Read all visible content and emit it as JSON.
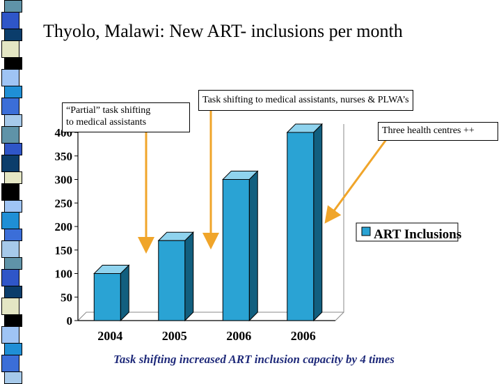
{
  "slide": {
    "title": "Thyolo, Malawi: New ART- inclusions per month",
    "footer": "Task shifting increased ART inclusion capacity by 4 times",
    "callouts": [
      {
        "line1": "“Partial” task shifting",
        "line2": "to medical assistants"
      },
      {
        "line1": "Task shifting to medical assistants, nurses & PLWA’s"
      },
      {
        "line1": "Three health centres ++"
      }
    ],
    "colors": {
      "bar_front": "#2aa3d4",
      "bar_side": "#125f7f",
      "bar_top": "#8fd3ee",
      "arrow": "#f0a52a"
    }
  },
  "chart_data": {
    "type": "bar",
    "categories": [
      "2004",
      "2005",
      "2006",
      "2006"
    ],
    "series": [
      {
        "name": "ART Inclusions",
        "values": [
          100,
          170,
          300,
          400
        ]
      }
    ],
    "yticks": [
      0,
      50,
      100,
      150,
      200,
      250,
      300,
      350,
      400
    ],
    "ylim": [
      0,
      400
    ],
    "title": "",
    "xlabel": "",
    "ylabel": "",
    "legend": "right",
    "grid": false
  }
}
